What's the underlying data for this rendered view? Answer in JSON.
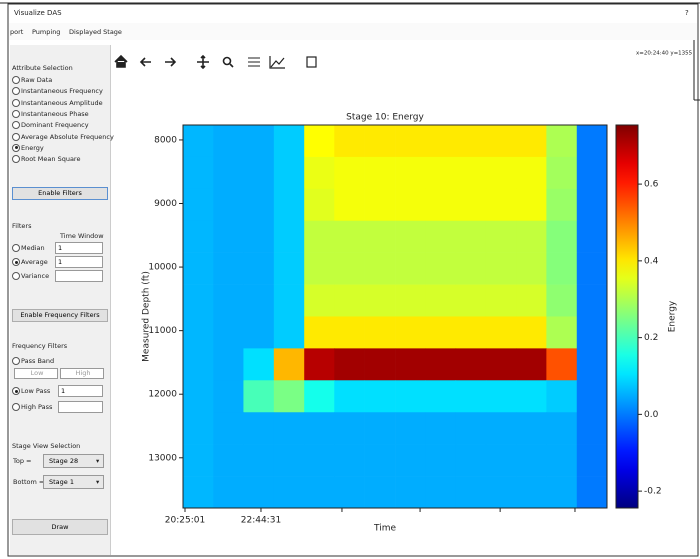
{
  "window": {
    "title": "Visualize DAS",
    "help": "?"
  },
  "menu": [
    "port",
    "Pumping",
    "Displayed Stage"
  ],
  "toolbar": {
    "coordinates": "x=20:24:40 y=1355"
  },
  "attribute_selection": {
    "title": "Attribute Selection",
    "options": [
      "Raw Data",
      "Instantaneous Frequency",
      "Instantaneous Amplitude",
      "Instantaneous Phase",
      "Dominant Frequency",
      "Average Absolute Frequency",
      "Energy",
      "Root Mean Square"
    ],
    "selected": 6
  },
  "filters": {
    "enable_button": "Enable Filters",
    "title": "Filters",
    "time_window": "Time Window",
    "options": [
      {
        "label": "Median",
        "value": "1"
      },
      {
        "label": "Average",
        "value": "1"
      },
      {
        "label": "Variance"
      }
    ],
    "selected": 1
  },
  "frequency_filters": {
    "enable_button": "Enable Frequency Filters",
    "title": "Frequency Filters",
    "options": [
      {
        "label": "Pass Band",
        "low": "Low",
        "high": "High"
      },
      {
        "label": "Low Pass",
        "value": "1"
      },
      {
        "label": "High Pass"
      }
    ],
    "selected": 1
  },
  "stage_view": {
    "title": "Stage View Selection",
    "top": {
      "label": "Top =",
      "value": "Stage 28"
    },
    "bottom": {
      "label": "Bottom =",
      "value": "Stage 1"
    }
  },
  "draw_button": "Draw",
  "chart_data": {
    "type": "heatmap",
    "title": "Stage 10: Energy",
    "xlabel": "Time",
    "ylabel": "Measured Depth (ft)",
    "xlim": [
      20.356,
      33.33
    ],
    "ylim": [
      7765,
      13790
    ],
    "y_inverted": true,
    "xticks": [
      {
        "value": 20.4169,
        "label": "20:25:01"
      },
      {
        "value": 22.7419,
        "label": "22:44:31"
      },
      {
        "value": 25.22,
        "label": null
      },
      {
        "value": 27.61,
        "label": null
      },
      {
        "value": 30.06,
        "label": null
      },
      {
        "value": 32.35,
        "label": null
      }
    ],
    "yticks": [
      8000,
      9000,
      10000,
      11000,
      12000,
      13000
    ],
    "x": [
      20.82,
      21.75,
      22.67,
      23.6,
      24.53,
      25.45,
      26.38,
      27.31,
      28.24,
      29.16,
      30.09,
      31.02,
      31.94,
      32.87
    ],
    "y": [
      8016,
      8518,
      9020,
      9522,
      10024,
      10526,
      11028,
      11530,
      12032,
      12535,
      13037,
      13539
    ],
    "z": [
      [
        0.06,
        0.05,
        0.05,
        0.08,
        0.38,
        0.4,
        0.4,
        0.4,
        0.4,
        0.4,
        0.4,
        0.4,
        0.3,
        0.0
      ],
      [
        0.06,
        0.05,
        0.05,
        0.08,
        0.36,
        0.37,
        0.37,
        0.37,
        0.37,
        0.37,
        0.37,
        0.37,
        0.29,
        0.0
      ],
      [
        0.06,
        0.05,
        0.05,
        0.08,
        0.35,
        0.37,
        0.37,
        0.37,
        0.37,
        0.37,
        0.37,
        0.37,
        0.28,
        0.0
      ],
      [
        0.06,
        0.05,
        0.05,
        0.08,
        0.32,
        0.32,
        0.32,
        0.32,
        0.32,
        0.32,
        0.32,
        0.32,
        0.26,
        0.0
      ],
      [
        0.06,
        0.05,
        0.05,
        0.08,
        0.32,
        0.32,
        0.32,
        0.32,
        0.32,
        0.32,
        0.32,
        0.32,
        0.26,
        0.0
      ],
      [
        0.06,
        0.05,
        0.05,
        0.08,
        0.34,
        0.34,
        0.34,
        0.34,
        0.34,
        0.34,
        0.34,
        0.34,
        0.27,
        0.0
      ],
      [
        0.06,
        0.05,
        0.05,
        0.08,
        0.4,
        0.4,
        0.4,
        0.4,
        0.4,
        0.4,
        0.4,
        0.4,
        0.3,
        0.0
      ],
      [
        0.06,
        0.05,
        0.1,
        0.45,
        0.7,
        0.72,
        0.72,
        0.72,
        0.72,
        0.72,
        0.72,
        0.72,
        0.55,
        0.0
      ],
      [
        0.06,
        0.05,
        0.2,
        0.25,
        0.15,
        0.1,
        0.1,
        0.1,
        0.1,
        0.1,
        0.1,
        0.1,
        0.08,
        0.0
      ],
      [
        0.06,
        0.05,
        0.05,
        0.05,
        0.05,
        0.05,
        0.05,
        0.05,
        0.05,
        0.05,
        0.05,
        0.05,
        0.05,
        0.0
      ],
      [
        0.06,
        0.05,
        0.05,
        0.05,
        0.05,
        0.05,
        0.05,
        0.05,
        0.05,
        0.05,
        0.05,
        0.05,
        0.05,
        0.0
      ],
      [
        0.06,
        0.05,
        0.05,
        0.05,
        0.05,
        0.05,
        0.05,
        0.05,
        0.05,
        0.05,
        0.05,
        0.05,
        0.05,
        0.0
      ]
    ],
    "colormap": "jet",
    "colorbar": {
      "label": "Energy",
      "lim": [
        -0.244,
        0.754
      ],
      "ticks": [
        0.6,
        0.4,
        0.2,
        {
          "value": 0,
          "label": "0.0"
        },
        -0.2
      ]
    }
  }
}
